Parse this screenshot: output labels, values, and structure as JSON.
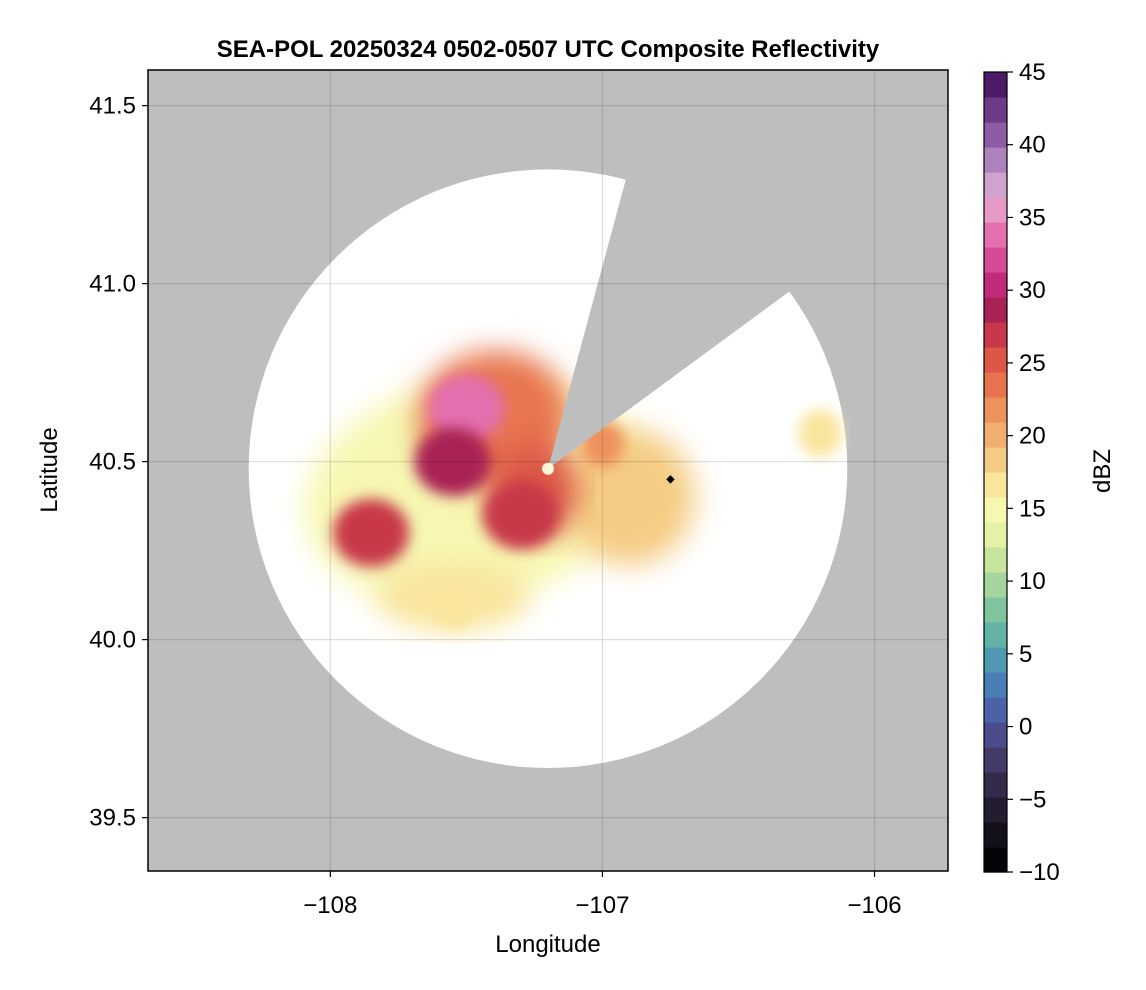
{
  "chart_data": {
    "type": "heatmap",
    "title": "SEA-POL 20250324 0502-0507 UTC Composite Reflectivity",
    "xlabel": "Longitude",
    "ylabel": "Latitude",
    "xlim": [
      -108.67,
      -105.73
    ],
    "ylim": [
      39.35,
      41.6
    ],
    "x_ticks": [
      -108,
      -107,
      -106
    ],
    "x_tick_labels": [
      "−108",
      "−107",
      "−106"
    ],
    "y_ticks": [
      39.5,
      40.0,
      40.5,
      41.0,
      41.5
    ],
    "y_tick_labels": [
      "39.5",
      "40.0",
      "40.5",
      "41.0",
      "41.5"
    ],
    "grid": true,
    "radar": {
      "center": [
        -107.2,
        40.48
      ],
      "range_deg": 1.1,
      "blocked_sector_vertices": [
        [
          -106.83,
          41.53
        ],
        [
          -106.06,
          41.12
        ]
      ],
      "marker": [
        -106.75,
        40.45
      ]
    },
    "colorbar": {
      "label": "dBZ",
      "min": -10,
      "max": 45,
      "ticks": [
        -10,
        -5,
        0,
        5,
        10,
        15,
        20,
        25,
        30,
        35,
        40,
        45
      ],
      "tick_labels": [
        "−10",
        "−5",
        "0",
        "5",
        "10",
        "15",
        "20",
        "25",
        "30",
        "35",
        "40",
        "45"
      ],
      "colors": [
        "#050308",
        "#14101a",
        "#241c30",
        "#342a4a",
        "#433a6a",
        "#4a4c8c",
        "#4a62a8",
        "#4a7fb5",
        "#4f9ab2",
        "#62b2a8",
        "#7fc49f",
        "#a3d59c",
        "#c6e49c",
        "#e5f2a5",
        "#f7f7b2",
        "#f9e59c",
        "#f5cc83",
        "#f2ae6c",
        "#ee915c",
        "#e8744f",
        "#dc5747",
        "#c8384a",
        "#a82255",
        "#c12b7a",
        "#d64a96",
        "#e470af",
        "#e69ac6",
        "#cfa2cf",
        "#ad82bd",
        "#8e5ca6",
        "#6d3a8a",
        "#4d1a68"
      ]
    },
    "echoes": [
      {
        "lon": -107.5,
        "lat": 40.65,
        "dbz": 33
      },
      {
        "lon": -107.55,
        "lat": 40.5,
        "dbz": 28
      },
      {
        "lon": -107.3,
        "lat": 40.35,
        "dbz": 27
      },
      {
        "lon": -107.85,
        "lat": 40.3,
        "dbz": 27
      },
      {
        "lon": -107.0,
        "lat": 40.55,
        "dbz": 21
      },
      {
        "lon": -107.55,
        "lat": 40.1,
        "dbz": 17
      },
      {
        "lon": -106.2,
        "lat": 40.58,
        "dbz": 17
      }
    ]
  }
}
